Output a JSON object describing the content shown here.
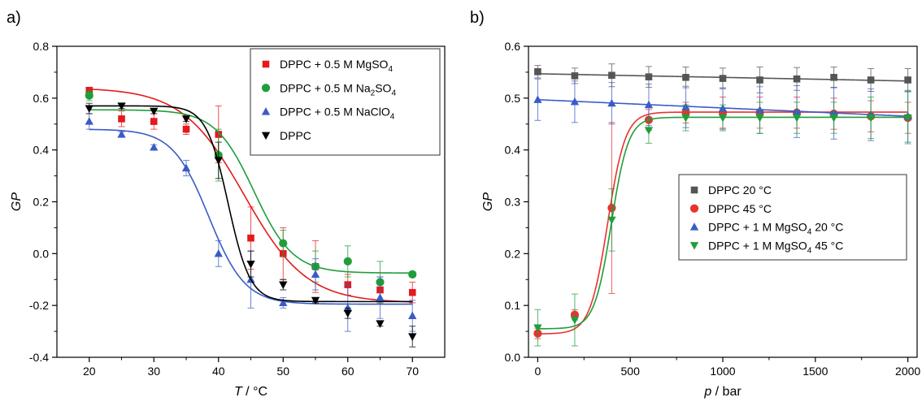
{
  "chart_data": [
    {
      "type": "scatter",
      "panel_label": "a)",
      "xlabel_var": "T",
      "xlabel_unit": " / °C",
      "ylabel": "GP",
      "xlim": [
        15,
        75
      ],
      "ylim": [
        -0.4,
        0.8
      ],
      "xticks": [
        20,
        30,
        40,
        50,
        60,
        70
      ],
      "yticks": [
        -0.4,
        -0.2,
        0.0,
        0.2,
        0.4,
        0.6,
        0.8
      ],
      "ytick_labels": [
        "-0.4",
        "-0.2",
        "0.0",
        "0.2",
        "0.4",
        "0.6",
        "0.8"
      ],
      "legend_position": "top-right",
      "series": [
        {
          "name_parts": [
            "DPPC + 0.5 M MgSO",
            "4",
            ""
          ],
          "marker": "square",
          "color": "#e41a1c",
          "x": [
            20,
            25,
            30,
            35,
            40,
            45,
            50,
            55,
            60,
            65,
            70
          ],
          "y": [
            0.63,
            0.52,
            0.51,
            0.48,
            0.46,
            0.06,
            0.0,
            -0.05,
            -0.12,
            -0.14,
            -0.15
          ],
          "err": [
            0.01,
            0.03,
            0.03,
            0.02,
            0.11,
            0.12,
            0.1,
            0.1,
            0.04,
            0.05,
            0.04
          ],
          "fit": {
            "a1": 0.64,
            "a2": -0.19,
            "x0": 44,
            "dx": 4.8
          }
        },
        {
          "name_parts": [
            "DPPC + 0.5 M Na",
            "2",
            "SO",
            "4"
          ],
          "marker": "circle",
          "color": "#1f9e3a",
          "x": [
            20,
            40,
            50,
            55,
            60,
            65,
            70
          ],
          "y": [
            0.61,
            0.38,
            0.04,
            -0.05,
            -0.03,
            -0.11,
            -0.08
          ],
          "err": [
            0.02,
            0.1,
            0.05,
            0.06,
            0.06,
            0.08,
            0.01
          ],
          "fit": {
            "a1": 0.555,
            "a2": -0.075,
            "x0": 45.5,
            "dx": 3.0
          }
        },
        {
          "name_parts": [
            "DPPC + 0.5 M NaClO",
            "4",
            ""
          ],
          "marker": "triangle-up",
          "color": "#3a5bc7",
          "x": [
            20,
            25,
            30,
            35,
            40,
            45,
            50,
            55,
            60,
            65,
            70
          ],
          "y": [
            0.51,
            0.46,
            0.41,
            0.33,
            0.0,
            -0.1,
            -0.19,
            -0.08,
            -0.21,
            -0.17,
            -0.24
          ],
          "err": [
            0.03,
            0.01,
            0.01,
            0.03,
            0.05,
            0.11,
            0.02,
            0.06,
            0.09,
            0.08,
            0.06
          ],
          "fit": {
            "a1": 0.48,
            "a2": -0.195,
            "x0": 38.5,
            "dx": 2.8
          }
        },
        {
          "name_parts": [
            "DPPC"
          ],
          "marker": "triangle-down",
          "color": "#000000",
          "x": [
            20,
            25,
            30,
            35,
            40,
            45,
            50,
            55,
            60,
            65,
            70
          ],
          "y": [
            0.56,
            0.57,
            0.55,
            0.52,
            0.36,
            -0.04,
            -0.12,
            -0.18,
            -0.23,
            -0.27,
            -0.32
          ],
          "err": [
            0.02,
            0.01,
            0.01,
            0.01,
            0.07,
            0.05,
            0.02,
            0.01,
            0.02,
            0.01,
            0.04
          ],
          "fit": {
            "a1": 0.57,
            "a2": -0.185,
            "x0": 41.5,
            "dx": 1.7
          }
        }
      ]
    },
    {
      "type": "scatter",
      "panel_label": "b)",
      "xlabel_var": "p",
      "xlabel_unit": " / bar",
      "ylabel": "GP",
      "xlim": [
        -50,
        2050
      ],
      "ylim": [
        0.0,
        0.6
      ],
      "xticks": [
        0,
        500,
        1000,
        1500,
        2000
      ],
      "yticks": [
        0.0,
        0.1,
        0.2,
        0.3,
        0.4,
        0.5,
        0.6
      ],
      "ytick_labels": [
        "0.0",
        "0.1",
        "0.2",
        "0.3",
        "0.4",
        "0.5",
        "0.6"
      ],
      "legend_position": "center-right",
      "series": [
        {
          "name_parts": [
            "DPPC 20 °C"
          ],
          "marker": "square",
          "color": "#555555",
          "x": [
            0,
            200,
            400,
            600,
            800,
            1000,
            1200,
            1400,
            1600,
            1800,
            2000
          ],
          "y": [
            0.551,
            0.543,
            0.544,
            0.541,
            0.54,
            0.538,
            0.535,
            0.537,
            0.54,
            0.535,
            0.535
          ],
          "err": [
            0.012,
            0.015,
            0.022,
            0.02,
            0.02,
            0.02,
            0.025,
            0.022,
            0.02,
            0.022,
            0.022
          ],
          "fit": {
            "type": "linear",
            "y0": 0.547,
            "y1": 0.533
          }
        },
        {
          "name_parts": [
            "DPPC 45 °C"
          ],
          "marker": "circle",
          "color": "#e8322f",
          "x": [
            0,
            200,
            400,
            600,
            800,
            1000,
            1200,
            1400,
            1600,
            1800,
            2000
          ],
          "y": [
            0.046,
            0.082,
            0.288,
            0.458,
            0.472,
            0.472,
            0.472,
            0.472,
            0.47,
            0.465,
            0.462
          ],
          "err": [
            0.01,
            0.01,
            0.165,
            0.02,
            0.02,
            0.03,
            0.03,
            0.03,
            0.03,
            0.03,
            0.03
          ],
          "fit": {
            "a1": 0.045,
            "a2": 0.473,
            "x0": 378,
            "dx": 48
          }
        },
        {
          "name_parts": [
            "DPPC + 1 M MgSO",
            "4",
            " 20 °C"
          ],
          "marker": "triangle-up",
          "color": "#3a5bc7",
          "x": [
            0,
            200,
            400,
            600,
            800,
            1000,
            1200,
            1400,
            1600,
            1800,
            2000
          ],
          "y": [
            0.497,
            0.493,
            0.49,
            0.487,
            0.483,
            0.48,
            0.477,
            0.474,
            0.471,
            0.468,
            0.465
          ],
          "err": [
            0.04,
            0.04,
            0.04,
            0.04,
            0.04,
            0.04,
            0.045,
            0.05,
            0.05,
            0.05,
            0.05
          ],
          "fit": {
            "type": "linear",
            "y0": 0.497,
            "y1": 0.465
          }
        },
        {
          "name_parts": [
            "DPPC + 1 M MgSO",
            "4",
            " 45 °C"
          ],
          "marker": "triangle-down",
          "color": "#1f9e3a",
          "x": [
            0,
            200,
            400,
            600,
            800,
            1000,
            1200,
            1400,
            1600,
            1800,
            2000
          ],
          "y": [
            0.057,
            0.072,
            0.265,
            0.438,
            0.462,
            0.462,
            0.462,
            0.462,
            0.462,
            0.462,
            0.462
          ],
          "err": [
            0.035,
            0.05,
            0.06,
            0.025,
            0.025,
            0.025,
            0.03,
            0.03,
            0.03,
            0.04,
            0.05
          ],
          "fit": {
            "a1": 0.055,
            "a2": 0.463,
            "x0": 398,
            "dx": 46
          }
        }
      ]
    }
  ]
}
